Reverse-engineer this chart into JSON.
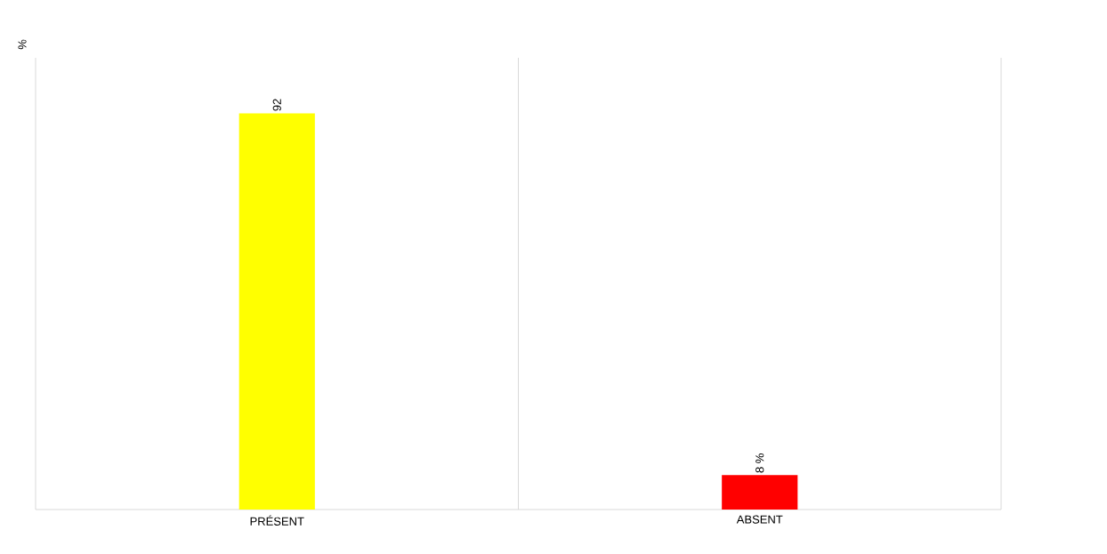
{
  "chart_data": {
    "type": "bar",
    "annotations": [
      "%"
    ],
    "categories": [
      "PRÉSENT",
      "ABSENT"
    ],
    "values": [
      92,
      8
    ],
    "colors": [
      "#ffff00",
      "#ff0000"
    ],
    "value_labels": [
      "92",
      "8 %"
    ],
    "grid": "x"
  }
}
